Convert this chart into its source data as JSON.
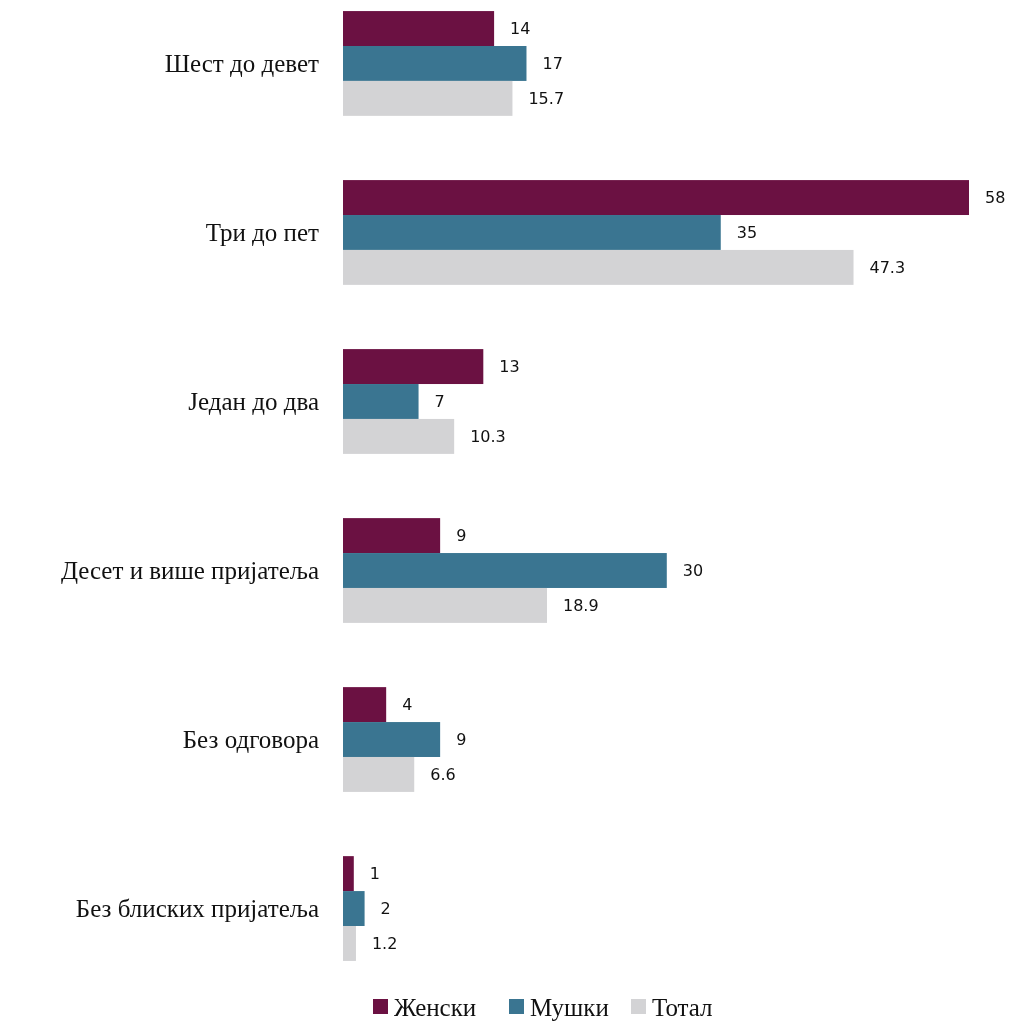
{
  "chart_data": {
    "type": "bar",
    "orientation": "horizontal",
    "categories": [
      "Шест до девет",
      "Три до пет",
      "Један до два",
      "Десет и више пријатеља",
      "Без одговора",
      "Без блиских пријатеља"
    ],
    "series": [
      {
        "name": "Женски",
        "color": "#6b1142",
        "values": [
          14,
          58,
          13,
          9,
          4,
          1
        ]
      },
      {
        "name": "Мушки",
        "color": "#3a7591",
        "values": [
          17,
          35,
          7,
          30,
          9,
          2
        ]
      },
      {
        "name": "Тотал",
        "color": "#d3d3d5",
        "values": [
          15.7,
          47.3,
          10.3,
          18.9,
          6.6,
          1.2
        ]
      }
    ],
    "data_labels": true,
    "legend": "bottom"
  }
}
